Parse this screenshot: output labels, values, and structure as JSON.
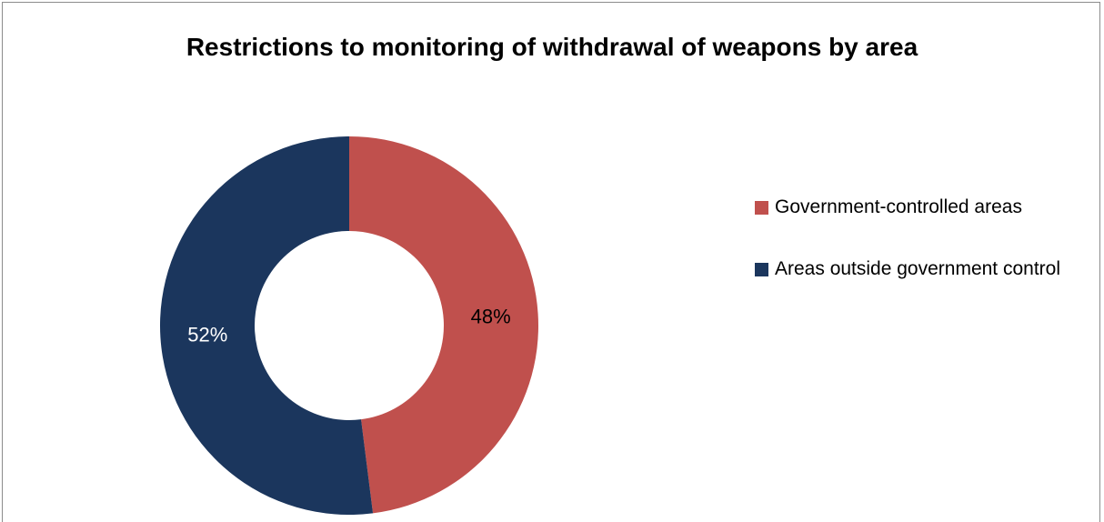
{
  "chart_data": {
    "type": "pie",
    "variant": "donut",
    "title": "Restrictions to monitoring of withdrawal of weapons by area",
    "slices": [
      {
        "label": "Government-controlled areas",
        "value": 48,
        "display": "48%",
        "color": "#c0504d",
        "label_color": "#000000"
      },
      {
        "label": "Areas outside government control",
        "value": 52,
        "display": "52%",
        "color": "#1b365d",
        "label_color": "#ffffff"
      }
    ],
    "legend_position": "right"
  }
}
